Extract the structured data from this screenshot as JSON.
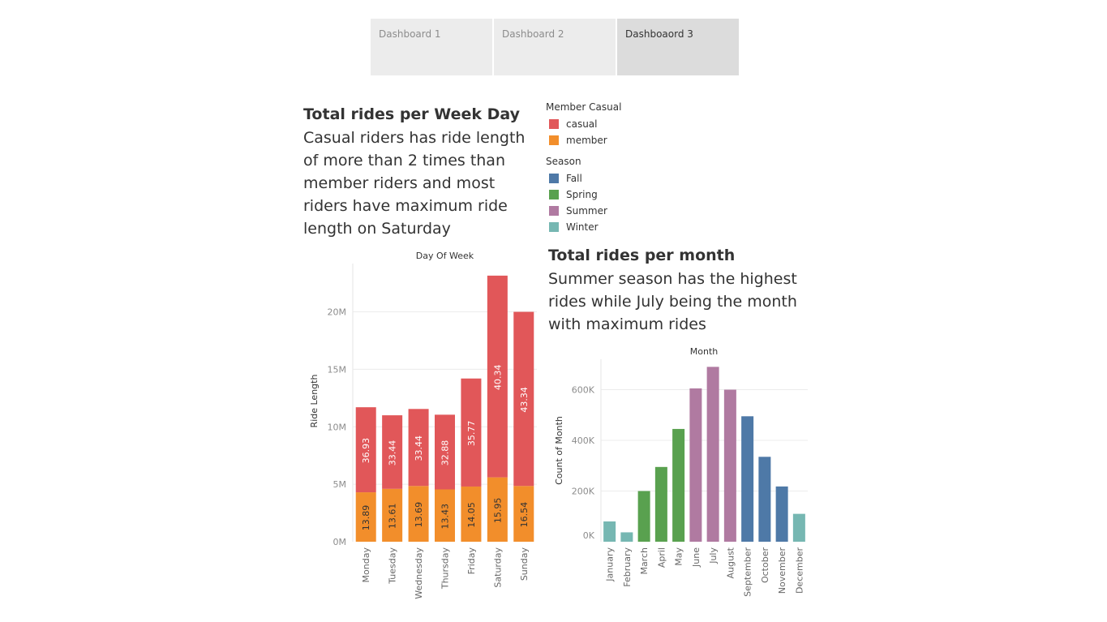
{
  "tabs": [
    {
      "label": "Dashboard 1",
      "active": false
    },
    {
      "label": "Dashboard 2",
      "active": false
    },
    {
      "label": "Dashboaord 3",
      "active": true
    }
  ],
  "weekday_section": {
    "title": "Total rides per Week Day",
    "description": [
      "Casual riders has ride length",
      "of more than 2 times than",
      "member riders and most",
      "riders have maximum ride",
      "length on Saturday"
    ]
  },
  "month_section": {
    "title": "Total rides per month",
    "description": [
      "Summer season has the highest",
      "rides while July being the  month",
      "with maximum rides"
    ]
  },
  "legends": {
    "member_casual": {
      "title": "Member Casual",
      "items": [
        {
          "label": "casual",
          "color": "#e15759"
        },
        {
          "label": "member",
          "color": "#f28e2b"
        }
      ]
    },
    "season": {
      "title": "Season",
      "items": [
        {
          "label": "Fall",
          "color": "#4e79a7"
        },
        {
          "label": "Spring",
          "color": "#59a14f"
        },
        {
          "label": "Summer",
          "color": "#b07aa1"
        },
        {
          "label": "Winter",
          "color": "#76b7b2"
        }
      ]
    }
  },
  "chart_data": [
    {
      "type": "bar",
      "stacked": true,
      "title": "Day Of Week",
      "ylabel": "Ride Length",
      "categories": [
        "Monday",
        "Tuesday",
        "Wednesday",
        "Thursday",
        "Friday",
        "Saturday",
        "Sunday"
      ],
      "yticks": [
        {
          "value": 0,
          "label": "0M"
        },
        {
          "value": 5000000,
          "label": "5M"
        },
        {
          "value": 10000000,
          "label": "10M"
        },
        {
          "value": 15000000,
          "label": "15M"
        },
        {
          "value": 20000000,
          "label": "20M"
        }
      ],
      "ylim": [
        0,
        24200000
      ],
      "series": [
        {
          "name": "member",
          "color": "#f28e2b",
          "values": [
            4300000,
            4600000,
            4850000,
            4550000,
            4800000,
            5600000,
            4850000
          ],
          "labels": [
            "13.89",
            "13.61",
            "13.69",
            "13.43",
            "14.05",
            "15.95",
            "16.54"
          ]
        },
        {
          "name": "casual",
          "color": "#e15759",
          "values": [
            7400000,
            6400000,
            6700000,
            6500000,
            9400000,
            17550000,
            15150000
          ],
          "labels": [
            "36.93",
            "33.44",
            "33.44",
            "32.88",
            "35.77",
            "40.34",
            "43.34"
          ]
        }
      ]
    },
    {
      "type": "bar",
      "title": "Month",
      "ylabel": "Count of Month",
      "categories": [
        "January",
        "February",
        "March",
        "April",
        "May",
        "June",
        "July",
        "August",
        "September",
        "October",
        "November",
        "December"
      ],
      "values": [
        80000,
        37000,
        200000,
        295000,
        445000,
        605000,
        690000,
        600000,
        495000,
        335000,
        218000,
        110000
      ],
      "season": [
        "Winter",
        "Winter",
        "Spring",
        "Spring",
        "Spring",
        "Summer",
        "Summer",
        "Summer",
        "Fall",
        "Fall",
        "Fall",
        "Winter"
      ],
      "season_colors": {
        "Fall": "#4e79a7",
        "Spring": "#59a14f",
        "Summer": "#b07aa1",
        "Winter": "#76b7b2"
      },
      "yticks": [
        {
          "value": 0,
          "label": "0K"
        },
        {
          "value": 200000,
          "label": "200K"
        },
        {
          "value": 400000,
          "label": "400K"
        },
        {
          "value": 600000,
          "label": "600K"
        }
      ],
      "ylim": [
        0,
        720000
      ]
    }
  ]
}
